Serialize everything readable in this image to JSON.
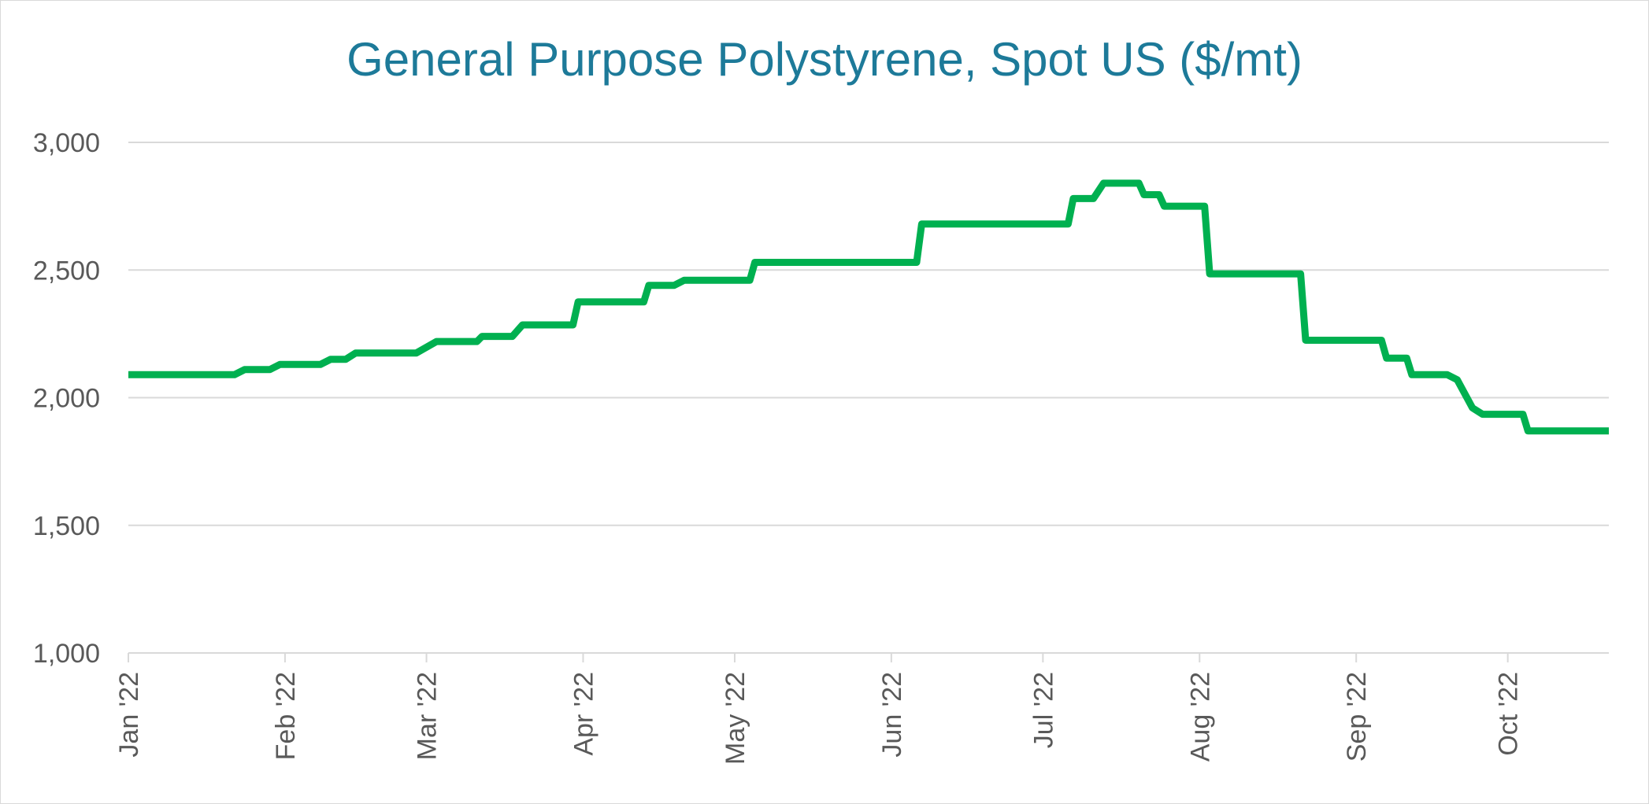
{
  "chart_data": {
    "type": "line",
    "title": "General Purpose Polystyrene, Spot US ($/mt)",
    "xlabel": "",
    "ylabel": "",
    "ylim": [
      1000,
      3000
    ],
    "yticks": [
      1000,
      1500,
      2000,
      2500,
      3000
    ],
    "ytick_labels": [
      "1,000",
      "1,500",
      "2,000",
      "2,500",
      "3,000"
    ],
    "xticks": [
      "2022-01-01",
      "2022-02-01",
      "2022-03-01",
      "2022-04-01",
      "2022-05-01",
      "2022-06-01",
      "2022-07-01",
      "2022-08-01",
      "2022-09-01",
      "2022-10-01"
    ],
    "xtick_labels": [
      "Jan '22",
      "Feb '22",
      "Mar '22",
      "Apr '22",
      "May '22",
      "Jun '22",
      "Jul '22",
      "Aug '22",
      "Sep '22",
      "Oct '22"
    ],
    "xlim": [
      "2022-01-01",
      "2022-10-21"
    ],
    "grid": true,
    "line_color": "#00b050",
    "series": [
      {
        "name": "",
        "points": [
          [
            "2022-01-01",
            2090
          ],
          [
            "2022-01-22",
            2090
          ],
          [
            "2022-01-24",
            2110
          ],
          [
            "2022-01-29",
            2110
          ],
          [
            "2022-01-31",
            2130
          ],
          [
            "2022-02-08",
            2130
          ],
          [
            "2022-02-10",
            2150
          ],
          [
            "2022-02-13",
            2150
          ],
          [
            "2022-02-15",
            2175
          ],
          [
            "2022-02-27",
            2175
          ],
          [
            "2022-03-03",
            2220
          ],
          [
            "2022-03-11",
            2220
          ],
          [
            "2022-03-12",
            2240
          ],
          [
            "2022-03-18",
            2240
          ],
          [
            "2022-03-20",
            2285
          ],
          [
            "2022-03-30",
            2285
          ],
          [
            "2022-03-31",
            2375
          ],
          [
            "2022-04-13",
            2375
          ],
          [
            "2022-04-14",
            2440
          ],
          [
            "2022-04-19",
            2440
          ],
          [
            "2022-04-21",
            2460
          ],
          [
            "2022-05-04",
            2460
          ],
          [
            "2022-05-05",
            2530
          ],
          [
            "2022-06-06",
            2530
          ],
          [
            "2022-06-07",
            2680
          ],
          [
            "2022-07-06",
            2680
          ],
          [
            "2022-07-07",
            2780
          ],
          [
            "2022-07-11",
            2780
          ],
          [
            "2022-07-13",
            2840
          ],
          [
            "2022-07-20",
            2840
          ],
          [
            "2022-07-21",
            2795
          ],
          [
            "2022-07-24",
            2795
          ],
          [
            "2022-07-25",
            2750
          ],
          [
            "2022-08-02",
            2750
          ],
          [
            "2022-08-03",
            2485
          ],
          [
            "2022-08-21",
            2485
          ],
          [
            "2022-08-22",
            2225
          ],
          [
            "2022-09-06",
            2225
          ],
          [
            "2022-09-07",
            2155
          ],
          [
            "2022-09-11",
            2155
          ],
          [
            "2022-09-12",
            2090
          ],
          [
            "2022-09-19",
            2090
          ],
          [
            "2022-09-21",
            2070
          ],
          [
            "2022-09-24",
            1960
          ],
          [
            "2022-09-26",
            1935
          ],
          [
            "2022-10-04",
            1935
          ],
          [
            "2022-10-05",
            1870
          ],
          [
            "2022-10-21",
            1870
          ]
        ]
      }
    ]
  }
}
